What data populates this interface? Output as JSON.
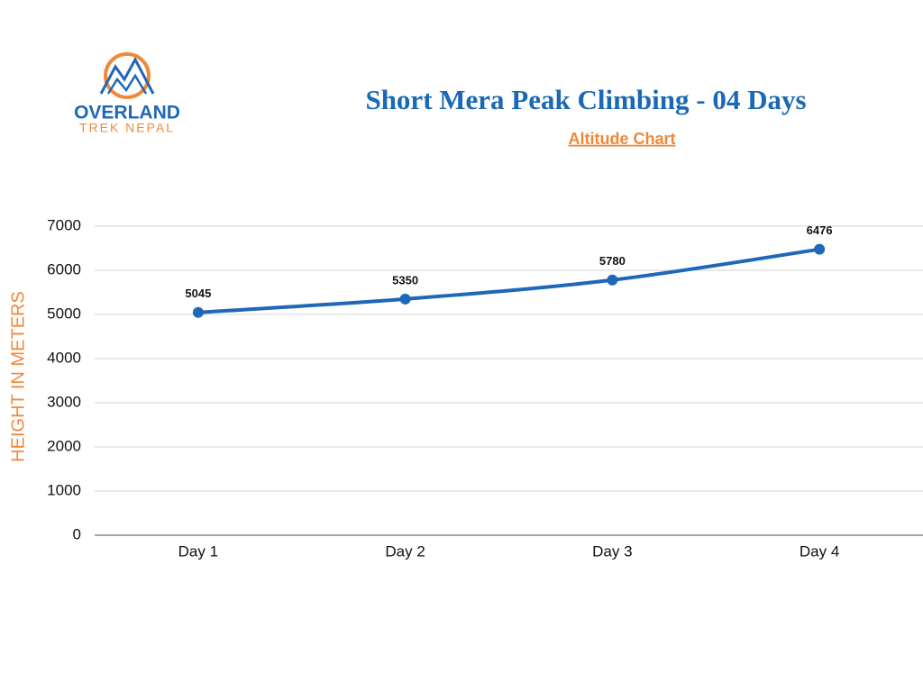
{
  "logo": {
    "name": "OVERLAND",
    "tagline": "TREK NEPAL"
  },
  "chart_data": {
    "type": "line",
    "title": "Short Mera Peak Climbing - 04 Days",
    "subtitle": "Altitude Chart",
    "y_label": "HEIGHT IN METERS",
    "categories": [
      "Day 1",
      "Day 2",
      "Day 3",
      "Day 4"
    ],
    "values": [
      5045,
      5350,
      5780,
      6476
    ],
    "color": "#1f67b8",
    "ylim": [
      0,
      7000
    ],
    "yticks": [
      0,
      1000,
      2000,
      3000,
      4000,
      5000,
      6000,
      7000
    ],
    "grid": true
  }
}
